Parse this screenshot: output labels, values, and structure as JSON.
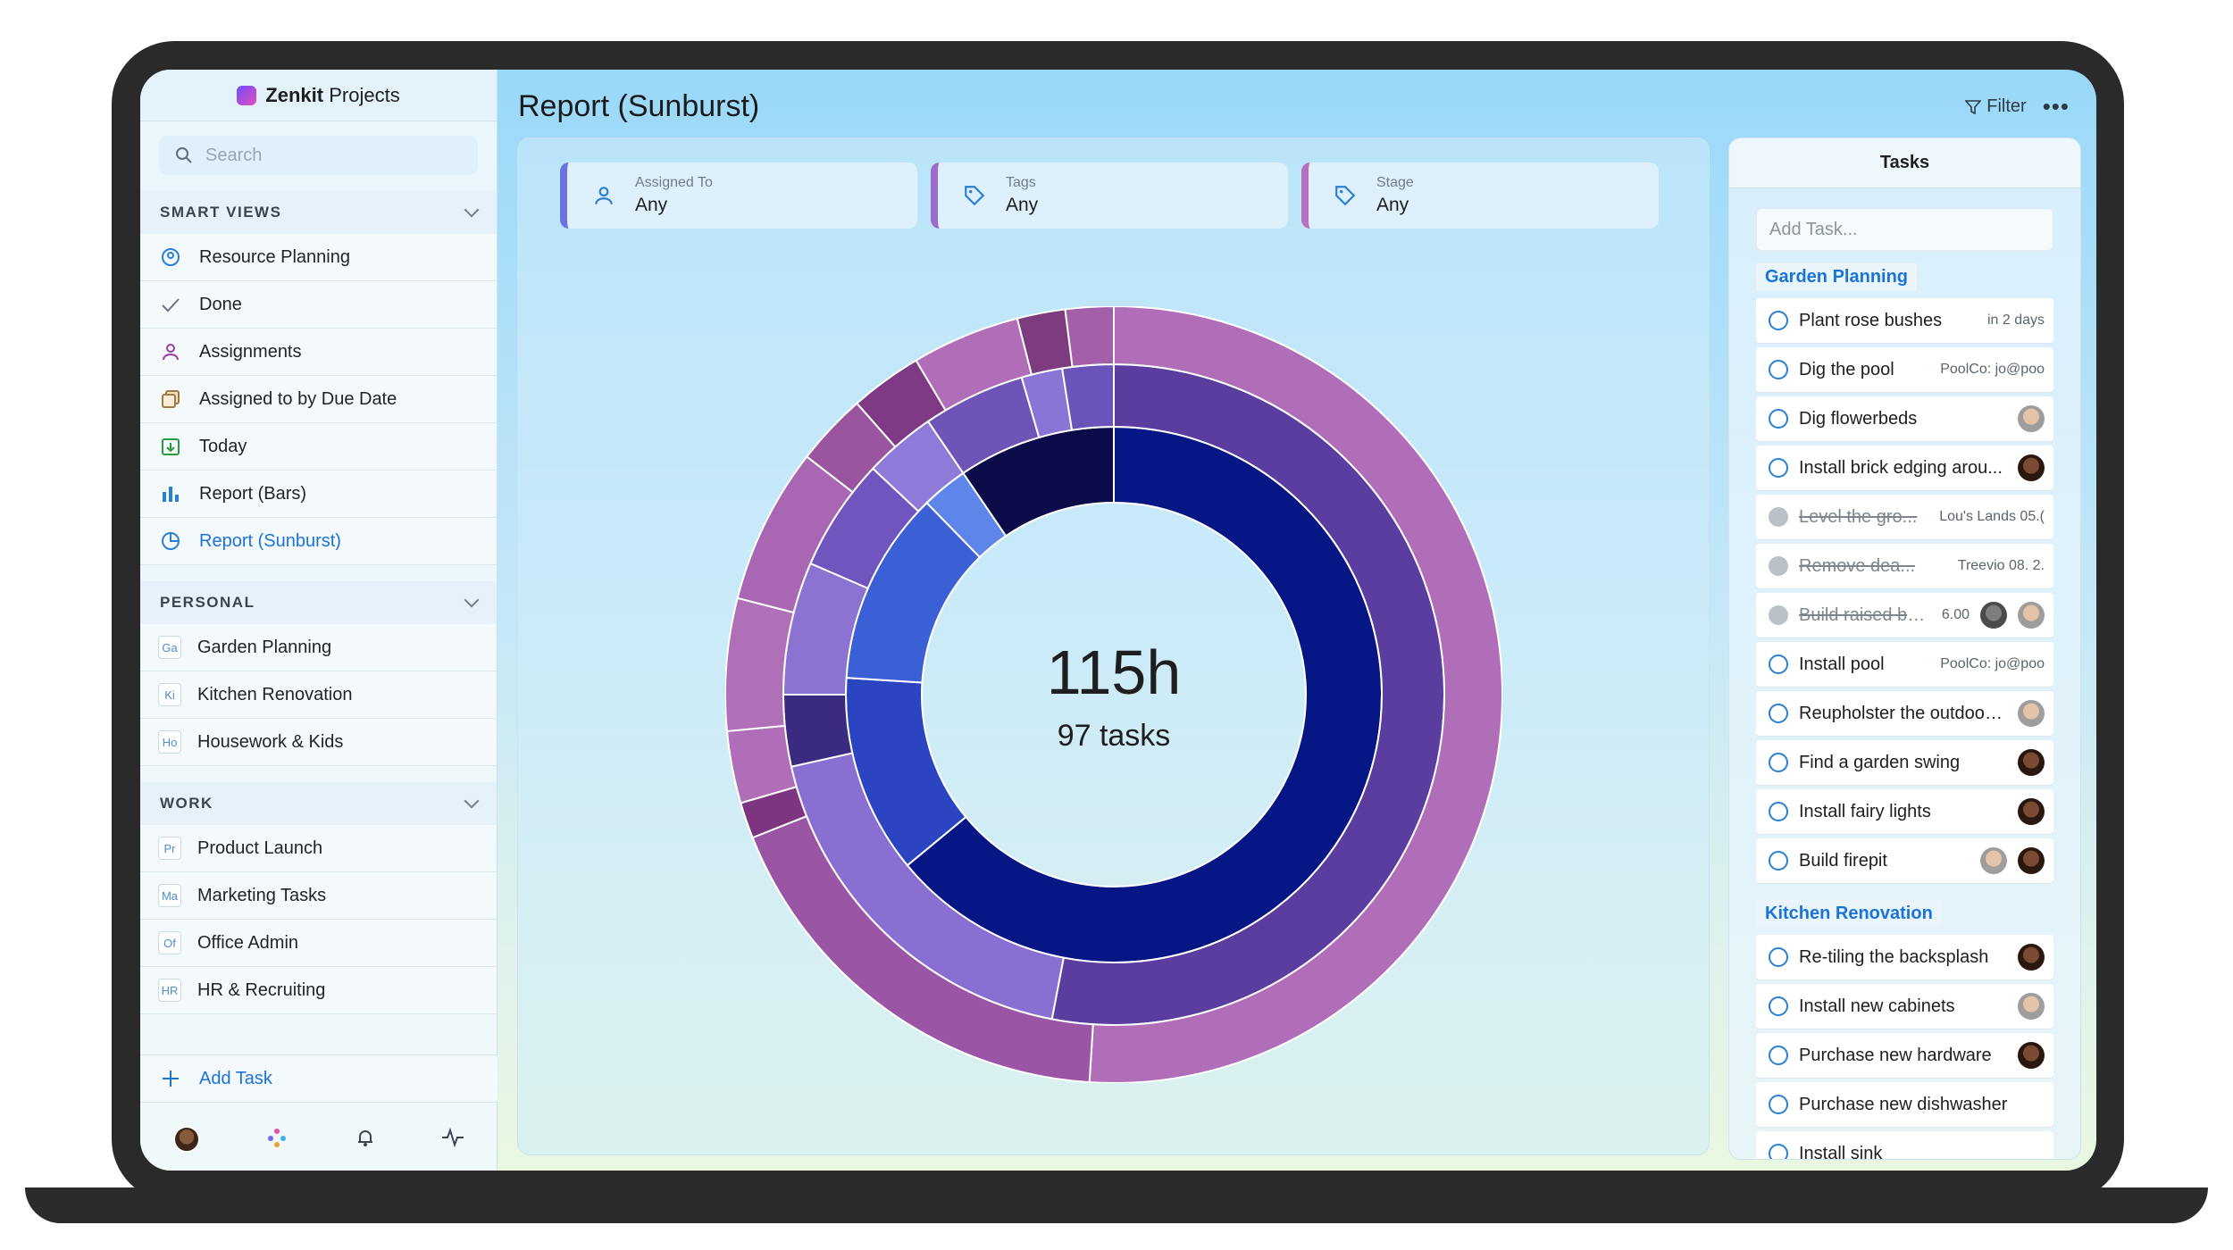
{
  "app": {
    "brand": "Zenkit",
    "product": "Projects"
  },
  "search": {
    "placeholder": "Search"
  },
  "page_title": "Report (Sunburst)",
  "topbar": {
    "filter_label": "Filter",
    "more_label": "•••"
  },
  "sections": {
    "smart_views": {
      "title": "SMART VIEWS",
      "items": [
        "Resource Planning",
        "Done",
        "Assignments",
        "Assigned to by Due Date",
        "Today",
        "Report (Bars)",
        "Report (Sunburst)"
      ]
    },
    "personal": {
      "title": "PERSONAL",
      "items": [
        {
          "abbr": "Ga",
          "label": "Garden Planning"
        },
        {
          "abbr": "Ki",
          "label": "Kitchen Renovation"
        },
        {
          "abbr": "Ho",
          "label": "Housework & Kids"
        }
      ]
    },
    "work": {
      "title": "WORK",
      "items": [
        {
          "abbr": "Pr",
          "label": "Product Launch"
        },
        {
          "abbr": "Ma",
          "label": "Marketing Tasks"
        },
        {
          "abbr": "Of",
          "label": "Office Admin"
        },
        {
          "abbr": "HR",
          "label": "HR & Recruiting"
        }
      ]
    }
  },
  "sidebar_add_task": "Add Task",
  "filters": [
    {
      "label": "Assigned To",
      "value": "Any",
      "accent": "#6a71e0"
    },
    {
      "label": "Tags",
      "value": "Any",
      "accent": "#9b6bc9"
    },
    {
      "label": "Stage",
      "value": "Any",
      "accent": "#b96fbf"
    }
  ],
  "summary": {
    "hours": "115h",
    "tasks": "97 tasks"
  },
  "chart_data": {
    "type": "sunburst",
    "rings": [
      {
        "ring": 1,
        "segments": [
          {
            "start": 0.0,
            "end": 0.64,
            "color": "#061685"
          },
          {
            "start": 0.64,
            "end": 0.76,
            "color": "#2a44c2"
          },
          {
            "start": 0.76,
            "end": 0.877,
            "color": "#3b5fd4"
          },
          {
            "start": 0.877,
            "end": 0.905,
            "color": "#5e86ea"
          },
          {
            "start": 0.905,
            "end": 1.0,
            "color": "#0b0b4a"
          }
        ]
      },
      {
        "ring": 2,
        "segments": [
          {
            "start": 0.0,
            "end": 0.53,
            "color": "#5a3d9f"
          },
          {
            "start": 0.53,
            "end": 0.715,
            "color": "#8a6fd3"
          },
          {
            "start": 0.715,
            "end": 0.75,
            "color": "#3a2a80"
          },
          {
            "start": 0.75,
            "end": 0.815,
            "color": "#8c73d2"
          },
          {
            "start": 0.815,
            "end": 0.87,
            "color": "#6f55bd"
          },
          {
            "start": 0.87,
            "end": 0.905,
            "color": "#8f79d9"
          },
          {
            "start": 0.905,
            "end": 0.955,
            "color": "#6e54b7"
          },
          {
            "start": 0.955,
            "end": 0.975,
            "color": "#8a74d6"
          },
          {
            "start": 0.975,
            "end": 1.0,
            "color": "#6a54ba"
          }
        ]
      },
      {
        "ring": 3,
        "segments": [
          {
            "start": 0.0,
            "end": 0.51,
            "color": "#b06eb8"
          },
          {
            "start": 0.51,
            "end": 0.69,
            "color": "#9a55a5"
          },
          {
            "start": 0.69,
            "end": 0.705,
            "color": "#7d3580"
          },
          {
            "start": 0.705,
            "end": 0.735,
            "color": "#b06eb8"
          },
          {
            "start": 0.735,
            "end": 0.79,
            "color": "#b070b8"
          },
          {
            "start": 0.79,
            "end": 0.855,
            "color": "#a966b3"
          },
          {
            "start": 0.855,
            "end": 0.885,
            "color": "#9a559f"
          },
          {
            "start": 0.885,
            "end": 0.915,
            "color": "#7e3a85"
          },
          {
            "start": 0.915,
            "end": 0.96,
            "color": "#b06eb8"
          },
          {
            "start": 0.96,
            "end": 0.98,
            "color": "#7d3b80"
          },
          {
            "start": 0.98,
            "end": 1.0,
            "color": "#a45fa9"
          }
        ]
      }
    ]
  },
  "tasks_panel": {
    "title": "Tasks",
    "add_placeholder": "Add Task...",
    "groups": [
      {
        "name": "Garden Planning",
        "tasks": [
          {
            "name": "Plant rose bushes",
            "meta": "in 2 days",
            "done": false,
            "avatars": []
          },
          {
            "name": "Dig the pool",
            "meta": "PoolCo: jo@poo",
            "done": false,
            "avatars": []
          },
          {
            "name": "Dig flowerbeds",
            "meta": "",
            "done": false,
            "avatars": [
              "light"
            ]
          },
          {
            "name": "Install brick edging arou...",
            "meta": "",
            "done": false,
            "avatars": [
              "dark"
            ]
          },
          {
            "name": "Level the gro...",
            "meta": "Lou's Lands  05.(",
            "done": true,
            "avatars": []
          },
          {
            "name": "Remove dea...",
            "meta": "Treevio   08.  2.",
            "done": true,
            "avatars": []
          },
          {
            "name": "Build raised be...",
            "meta": "6.00",
            "done": true,
            "avatars": [
              "grey",
              "light"
            ]
          },
          {
            "name": "Install pool",
            "meta": "PoolCo: jo@poo",
            "done": false,
            "avatars": []
          },
          {
            "name": "Reupholster the outdoor ...",
            "meta": "",
            "done": false,
            "avatars": [
              "light"
            ]
          },
          {
            "name": "Find a garden swing",
            "meta": "",
            "done": false,
            "avatars": [
              "dark"
            ]
          },
          {
            "name": "Install fairy lights",
            "meta": "",
            "done": false,
            "avatars": [
              "dark"
            ]
          },
          {
            "name": "Build firepit",
            "meta": "",
            "done": false,
            "avatars": [
              "light",
              "dark"
            ]
          }
        ]
      },
      {
        "name": "Kitchen Renovation",
        "tasks": [
          {
            "name": "Re-tiling the backsplash",
            "meta": "",
            "done": false,
            "avatars": [
              "dark"
            ]
          },
          {
            "name": "Install new cabinets",
            "meta": "",
            "done": false,
            "avatars": [
              "light"
            ]
          },
          {
            "name": "Purchase new hardware",
            "meta": "",
            "done": false,
            "avatars": [
              "dark"
            ]
          },
          {
            "name": "Purchase new dishwasher",
            "meta": "",
            "done": false,
            "avatars": []
          },
          {
            "name": "Install sink",
            "meta": "",
            "done": false,
            "avatars": []
          }
        ]
      }
    ]
  }
}
